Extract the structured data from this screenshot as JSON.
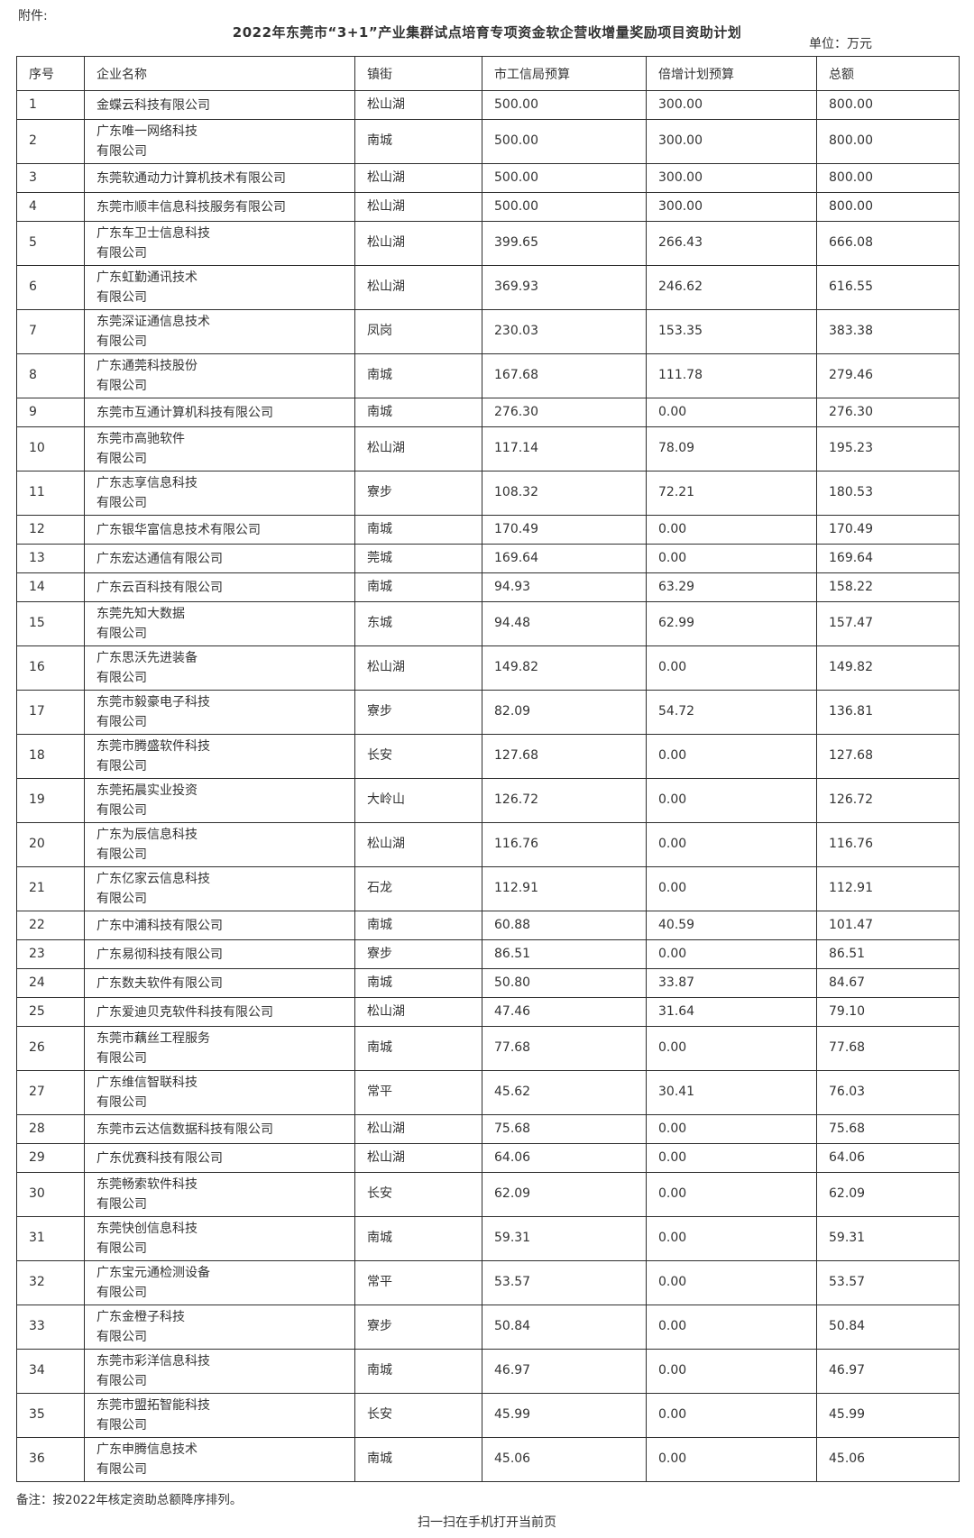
{
  "page": {
    "attachment_label": "附件:",
    "title": "2022年东莞市“3+1”产业集群试点培育专项资金软企营收增量奖励项目资助计划",
    "unit_label": "单位：万元",
    "note": "备注：按2022年核定资助总额降序排列。",
    "footer_link": "扫一扫在手机打开当前页"
  },
  "table": {
    "columns": [
      "序号",
      "企业名称",
      "镇街",
      "市工信局预算",
      "倍增计划预算",
      "总额"
    ],
    "rows": [
      {
        "no": "1",
        "name": "金蝶云科技有限公司",
        "town": "松山湖",
        "bureau": "500.00",
        "plan": "300.00",
        "total": "800.00"
      },
      {
        "no": "2",
        "name": "广东唯一网络科技\n有限公司",
        "town": "南城",
        "bureau": "500.00",
        "plan": "300.00",
        "total": "800.00"
      },
      {
        "no": "3",
        "name": "东莞软通动力计算机技术有限公司",
        "town": "松山湖",
        "bureau": "500.00",
        "plan": "300.00",
        "total": "800.00"
      },
      {
        "no": "4",
        "name": "东莞市顺丰信息科技服务有限公司",
        "town": "松山湖",
        "bureau": "500.00",
        "plan": "300.00",
        "total": "800.00"
      },
      {
        "no": "5",
        "name": "广东车卫士信息科技\n有限公司",
        "town": "松山湖",
        "bureau": "399.65",
        "plan": "266.43",
        "total": "666.08"
      },
      {
        "no": "6",
        "name": "广东虹勤通讯技术\n有限公司",
        "town": "松山湖",
        "bureau": "369.93",
        "plan": "246.62",
        "total": "616.55"
      },
      {
        "no": "7",
        "name": "东莞深证通信息技术\n有限公司",
        "town": "凤岗",
        "bureau": "230.03",
        "plan": "153.35",
        "total": "383.38"
      },
      {
        "no": "8",
        "name": "广东通莞科技股份\n有限公司",
        "town": "南城",
        "bureau": "167.68",
        "plan": "111.78",
        "total": "279.46"
      },
      {
        "no": "9",
        "name": "东莞市互通计算机科技有限公司",
        "town": "南城",
        "bureau": "276.30",
        "plan": "0.00",
        "total": "276.30"
      },
      {
        "no": "10",
        "name": "东莞市高驰软件\n有限公司",
        "town": "松山湖",
        "bureau": "117.14",
        "plan": "78.09",
        "total": "195.23"
      },
      {
        "no": "11",
        "name": "广东志享信息科技\n有限公司",
        "town": "寮步",
        "bureau": "108.32",
        "plan": "72.21",
        "total": "180.53"
      },
      {
        "no": "12",
        "name": "广东银华富信息技术有限公司",
        "town": "南城",
        "bureau": "170.49",
        "plan": "0.00",
        "total": "170.49"
      },
      {
        "no": "13",
        "name": "广东宏达通信有限公司",
        "town": "莞城",
        "bureau": "169.64",
        "plan": "0.00",
        "total": "169.64"
      },
      {
        "no": "14",
        "name": "广东云百科技有限公司",
        "town": "南城",
        "bureau": "94.93",
        "plan": "63.29",
        "total": "158.22"
      },
      {
        "no": "15",
        "name": "东莞先知大数据\n有限公司",
        "town": "东城",
        "bureau": "94.48",
        "plan": "62.99",
        "total": "157.47"
      },
      {
        "no": "16",
        "name": "广东思沃先进装备\n有限公司",
        "town": "松山湖",
        "bureau": "149.82",
        "plan": "0.00",
        "total": "149.82"
      },
      {
        "no": "17",
        "name": "东莞市毅豪电子科技\n有限公司",
        "town": "寮步",
        "bureau": "82.09",
        "plan": "54.72",
        "total": "136.81"
      },
      {
        "no": "18",
        "name": "东莞市腾盛软件科技\n有限公司",
        "town": "长安",
        "bureau": "127.68",
        "plan": "0.00",
        "total": "127.68"
      },
      {
        "no": "19",
        "name": "东莞拓晨实业投资\n有限公司",
        "town": "大岭山",
        "bureau": "126.72",
        "plan": "0.00",
        "total": "126.72"
      },
      {
        "no": "20",
        "name": "广东为辰信息科技\n有限公司",
        "town": "松山湖",
        "bureau": "116.76",
        "plan": "0.00",
        "total": "116.76"
      },
      {
        "no": "21",
        "name": "广东亿家云信息科技\n有限公司",
        "town": "石龙",
        "bureau": "112.91",
        "plan": "0.00",
        "total": "112.91"
      },
      {
        "no": "22",
        "name": "广东中浦科技有限公司",
        "town": "南城",
        "bureau": "60.88",
        "plan": "40.59",
        "total": "101.47"
      },
      {
        "no": "23",
        "name": "广东易彻科技有限公司",
        "town": "寮步",
        "bureau": "86.51",
        "plan": "0.00",
        "total": "86.51"
      },
      {
        "no": "24",
        "name": "广东数夫软件有限公司",
        "town": "南城",
        "bureau": "50.80",
        "plan": "33.87",
        "total": "84.67"
      },
      {
        "no": "25",
        "name": "广东爱迪贝克软件科技有限公司",
        "town": "松山湖",
        "bureau": "47.46",
        "plan": "31.64",
        "total": "79.10"
      },
      {
        "no": "26",
        "name": "东莞市藕丝工程服务\n有限公司",
        "town": "南城",
        "bureau": "77.68",
        "plan": "0.00",
        "total": "77.68"
      },
      {
        "no": "27",
        "name": "广东维信智联科技\n有限公司",
        "town": "常平",
        "bureau": "45.62",
        "plan": "30.41",
        "total": "76.03"
      },
      {
        "no": "28",
        "name": "东莞市云达信数据科技有限公司",
        "town": "松山湖",
        "bureau": "75.68",
        "plan": "0.00",
        "total": "75.68"
      },
      {
        "no": "29",
        "name": "广东优赛科技有限公司",
        "town": "松山湖",
        "bureau": "64.06",
        "plan": "0.00",
        "total": "64.06"
      },
      {
        "no": "30",
        "name": "东莞畅索软件科技\n有限公司",
        "town": "长安",
        "bureau": "62.09",
        "plan": "0.00",
        "total": "62.09"
      },
      {
        "no": "31",
        "name": "东莞快创信息科技\n有限公司",
        "town": "南城",
        "bureau": "59.31",
        "plan": "0.00",
        "total": "59.31"
      },
      {
        "no": "32",
        "name": "广东宝元通检测设备\n有限公司",
        "town": "常平",
        "bureau": "53.57",
        "plan": "0.00",
        "total": "53.57"
      },
      {
        "no": "33",
        "name": "广东金橙子科技\n有限公司",
        "town": "寮步",
        "bureau": "50.84",
        "plan": "0.00",
        "total": "50.84"
      },
      {
        "no": "34",
        "name": "东莞市彩洋信息科技\n有限公司",
        "town": "南城",
        "bureau": "46.97",
        "plan": "0.00",
        "total": "46.97"
      },
      {
        "no": "35",
        "name": "东莞市盟拓智能科技\n有限公司",
        "town": "长安",
        "bureau": "45.99",
        "plan": "0.00",
        "total": "45.99"
      },
      {
        "no": "36",
        "name": "广东申腾信息技术\n有限公司",
        "town": "南城",
        "bureau": "45.06",
        "plan": "0.00",
        "total": "45.06"
      }
    ]
  }
}
